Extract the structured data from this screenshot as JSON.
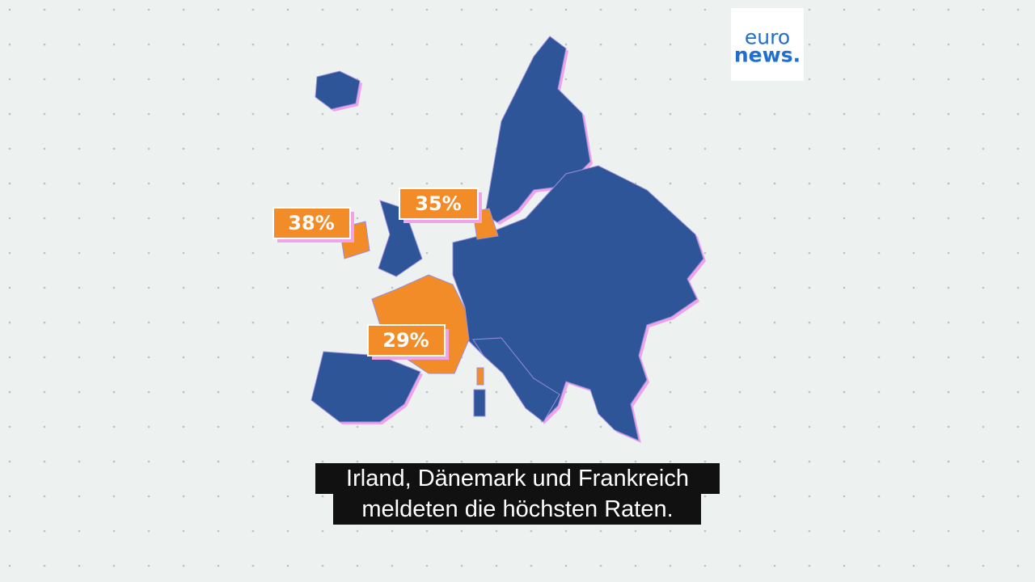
{
  "logo": {
    "line1": "euro",
    "line2": "news."
  },
  "map_labels": [
    "38%",
    "35%",
    "29%"
  ],
  "subtitles": [
    "Irland, Dänemark und Frankreich",
    "meldeten die höchsten Raten."
  ]
}
